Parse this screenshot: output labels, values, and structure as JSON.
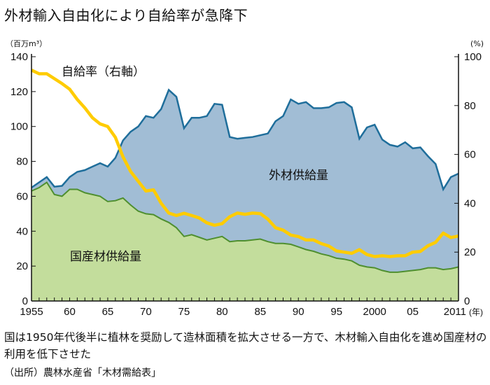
{
  "title": "外材輸入自由化により自給率が急降下",
  "note": "国は1950年代後半に植林を奨励して造林面積を拡大させる一方で、木材輸入自由化を進め国産材の利用を低下させた",
  "source": "（出所）農林水産省「木材需給表」",
  "chart_data": {
    "type": "area",
    "left_unit": "（百万m³）",
    "right_unit": "(%)",
    "x_unit": "(年)",
    "x": [
      1955,
      1956,
      1957,
      1958,
      1959,
      1960,
      1961,
      1962,
      1963,
      1964,
      1965,
      1966,
      1967,
      1968,
      1969,
      1970,
      1971,
      1972,
      1973,
      1974,
      1975,
      1976,
      1977,
      1978,
      1979,
      1980,
      1981,
      1982,
      1983,
      1984,
      1985,
      1986,
      1987,
      1988,
      1989,
      1990,
      1991,
      1992,
      1993,
      1994,
      1995,
      1996,
      1997,
      1998,
      1999,
      2000,
      2001,
      2002,
      2003,
      2004,
      2005,
      2006,
      2007,
      2008,
      2009,
      2010,
      2011
    ],
    "x_ticks": [
      {
        "v": 1955,
        "label": "1955"
      },
      {
        "v": 1960,
        "label": "60"
      },
      {
        "v": 1965,
        "label": "65"
      },
      {
        "v": 1970,
        "label": "70"
      },
      {
        "v": 1975,
        "label": "75"
      },
      {
        "v": 1980,
        "label": "80"
      },
      {
        "v": 1985,
        "label": "85"
      },
      {
        "v": 1990,
        "label": "90"
      },
      {
        "v": 1995,
        "label": "95"
      },
      {
        "v": 2000,
        "label": "2000"
      },
      {
        "v": 2005,
        "label": "05"
      },
      {
        "v": 2011,
        "label": "2011"
      }
    ],
    "ylim_left": [
      0,
      140
    ],
    "yticks_left": [
      0,
      20,
      40,
      60,
      80,
      100,
      120,
      140
    ],
    "ylim_right": [
      0,
      100
    ],
    "yticks_right": [
      0,
      20,
      40,
      60,
      80,
      100
    ],
    "series": [
      {
        "name": "国産材供給量",
        "axis": "left",
        "stack": "bottom",
        "color": "#c3dd9c",
        "line": "#4f8f2f",
        "values": [
          63,
          65,
          68,
          61,
          60,
          64,
          64,
          62,
          61,
          60,
          57,
          57.5,
          59,
          55,
          51.5,
          50,
          49.5,
          47,
          45,
          42,
          37,
          38,
          36.5,
          35,
          36,
          37,
          34,
          34.5,
          34.5,
          35,
          35.5,
          34,
          33,
          33,
          32.5,
          31,
          29.5,
          28.5,
          27,
          26,
          24.5,
          24,
          23,
          20.5,
          19.5,
          19,
          17.5,
          16.5,
          16.5,
          17,
          17.5,
          18,
          19,
          19,
          18,
          18.5,
          19.5
        ]
      },
      {
        "name": "外材供給量",
        "axis": "left",
        "stack": "top",
        "color": "#a1bdd5",
        "line": "#1f6e9b",
        "total_values": [
          65,
          68,
          71,
          65.5,
          66,
          71,
          74,
          75,
          77,
          79,
          77,
          82,
          92,
          97,
          100,
          106,
          105,
          110,
          121,
          117,
          99,
          105,
          105,
          106,
          113,
          112.5,
          94,
          93,
          93.5,
          94,
          95,
          96,
          103,
          106,
          115.5,
          113,
          114,
          110.5,
          110.5,
          111,
          113.5,
          114,
          111,
          93,
          99.5,
          101,
          92.5,
          89.5,
          88.5,
          91,
          87.5,
          88,
          83,
          78.5,
          64,
          71,
          73
        ]
      },
      {
        "name": "自給率（右軸）",
        "axis": "right",
        "type": "line",
        "color": "#ffcc00",
        "values": [
          94.5,
          93,
          93,
          91,
          89,
          86.7,
          82.5,
          79,
          75,
          72.5,
          71.4,
          67,
          59,
          53,
          49,
          45,
          45.5,
          40,
          36,
          35,
          35.9,
          35,
          34,
          32,
          31,
          31.7,
          34.5,
          36,
          35.5,
          36,
          35.8,
          33.5,
          30,
          29,
          27,
          26.4,
          25,
          25,
          23.5,
          22.5,
          20.5,
          20,
          19.5,
          21,
          19,
          18.2,
          18.5,
          18.2,
          18.5,
          18.5,
          20,
          20.3,
          22.6,
          24,
          27.8,
          26,
          26.6
        ]
      }
    ]
  }
}
